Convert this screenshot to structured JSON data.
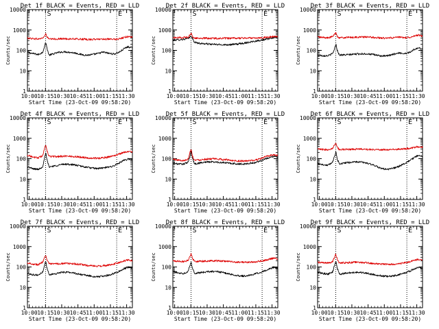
{
  "figure": {
    "xlabel": "Start Time (23-Oct-09 09:58:20)",
    "ylabel": "Counts/sec",
    "xticks": [
      "10:00",
      "10:15",
      "10:30",
      "10:45",
      "11:00",
      "11:15",
      "11:30"
    ],
    "yticks": [
      "1",
      "10",
      "100",
      "1000",
      "10000"
    ],
    "markers": [
      "S",
      "E"
    ],
    "colors": {
      "events": "#000000",
      "lld": "#dd0000",
      "vline": "#000000"
    }
  },
  "chart_data": [
    {
      "type": "line",
      "title": "Det 1f BLACK = Events, RED = LLD",
      "x_range_min": [
        0,
        97
      ],
      "ylim": [
        1,
        10000
      ],
      "yscale": "log",
      "markers_at_min": [
        16.8,
        82.5
      ],
      "x": [
        0,
        5,
        10,
        14,
        16,
        17,
        18,
        20,
        25,
        30,
        35,
        40,
        45,
        50,
        55,
        60,
        65,
        70,
        75,
        80,
        85,
        90,
        93,
        97
      ],
      "series": [
        {
          "name": "BLACK = Events",
          "values": [
            80,
            70,
            62,
            80,
            170,
            260,
            130,
            58,
            70,
            82,
            85,
            80,
            73,
            62,
            58,
            62,
            70,
            82,
            72,
            66,
            82,
            128,
            150,
            130
          ]
        },
        {
          "name": "RED = LLD",
          "values": [
            400,
            380,
            360,
            400,
            520,
            650,
            470,
            355,
            360,
            370,
            370,
            365,
            360,
            355,
            345,
            345,
            350,
            365,
            350,
            345,
            365,
            440,
            480,
            450
          ]
        }
      ]
    },
    {
      "type": "line",
      "title": "Det 2f BLACK = Events, RED = LLD",
      "x_range_min": [
        0,
        97
      ],
      "ylim": [
        1,
        10000
      ],
      "yscale": "log",
      "markers_at_min": [
        16.8,
        82.5
      ],
      "x": [
        0,
        5,
        10,
        14,
        16,
        17,
        18,
        20,
        25,
        30,
        35,
        40,
        45,
        50,
        55,
        60,
        65,
        70,
        75,
        80,
        85,
        90,
        93,
        97
      ],
      "series": [
        {
          "name": "BLACK = Events",
          "values": [
            320,
            330,
            350,
            380,
            450,
            520,
            380,
            250,
            220,
            210,
            200,
            195,
            190,
            190,
            195,
            205,
            225,
            250,
            280,
            310,
            340,
            380,
            420,
            440
          ]
        },
        {
          "name": "RED = LLD",
          "values": [
            420,
            420,
            430,
            450,
            570,
            700,
            480,
            400,
            395,
            395,
            390,
            390,
            390,
            390,
            390,
            395,
            400,
            405,
            410,
            420,
            430,
            450,
            480,
            470
          ]
        }
      ]
    },
    {
      "type": "line",
      "title": "Det 3f BLACK = Events, RED = LLD",
      "x_range_min": [
        0,
        97
      ],
      "ylim": [
        1,
        10000
      ],
      "yscale": "log",
      "markers_at_min": [
        16.8,
        82.5
      ],
      "x": [
        0,
        5,
        10,
        14,
        16,
        17,
        18,
        20,
        25,
        30,
        35,
        40,
        45,
        50,
        55,
        60,
        65,
        70,
        75,
        80,
        85,
        90,
        93,
        97
      ],
      "series": [
        {
          "name": "BLACK = Events",
          "values": [
            60,
            55,
            55,
            70,
            140,
            200,
            110,
            60,
            60,
            62,
            66,
            68,
            68,
            64,
            58,
            52,
            54,
            65,
            75,
            70,
            80,
            115,
            130,
            120
          ]
        },
        {
          "name": "RED = LLD",
          "values": [
            450,
            430,
            410,
            480,
            650,
            760,
            500,
            420,
            420,
            430,
            440,
            450,
            450,
            440,
            420,
            400,
            400,
            420,
            440,
            420,
            440,
            520,
            560,
            500
          ]
        }
      ]
    },
    {
      "type": "line",
      "title": "Det 4f BLACK = Events, RED = LLD",
      "x_range_min": [
        0,
        97
      ],
      "ylim": [
        1,
        10000
      ],
      "yscale": "log",
      "markers_at_min": [
        16.8,
        82.5
      ],
      "x": [
        0,
        5,
        10,
        14,
        16,
        17,
        18,
        20,
        25,
        30,
        35,
        40,
        45,
        50,
        55,
        60,
        65,
        70,
        75,
        80,
        85,
        90,
        93,
        97
      ],
      "series": [
        {
          "name": "BLACK = Events",
          "values": [
            40,
            32,
            30,
            40,
            120,
            190,
            90,
            40,
            44,
            50,
            54,
            52,
            48,
            42,
            38,
            34,
            33,
            35,
            38,
            45,
            62,
            85,
            95,
            90
          ]
        },
        {
          "name": "RED = LLD",
          "values": [
            150,
            120,
            110,
            140,
            330,
            480,
            240,
            130,
            125,
            130,
            135,
            130,
            125,
            120,
            110,
            105,
            105,
            110,
            120,
            140,
            170,
            210,
            230,
            210
          ]
        }
      ]
    },
    {
      "type": "line",
      "title": "Det 5f BLACK = Events, RED = LLD",
      "x_range_min": [
        0,
        97
      ],
      "ylim": [
        1,
        10000
      ],
      "yscale": "log",
      "markers_at_min": [
        16.8,
        82.5
      ],
      "x": [
        0,
        5,
        10,
        14,
        16,
        17,
        18,
        20,
        25,
        30,
        35,
        40,
        45,
        50,
        55,
        60,
        65,
        70,
        75,
        80,
        85,
        90,
        93,
        97
      ],
      "series": [
        {
          "name": "BLACK = Events",
          "values": [
            60,
            55,
            55,
            65,
            150,
            230,
            110,
            55,
            62,
            68,
            70,
            68,
            65,
            62,
            58,
            55,
            55,
            58,
            62,
            75,
            95,
            120,
            130,
            120
          ]
        },
        {
          "name": "RED = LLD",
          "values": [
            95,
            85,
            80,
            95,
            220,
            300,
            140,
            85,
            88,
            95,
            98,
            96,
            92,
            88,
            82,
            78,
            76,
            78,
            82,
            95,
            120,
            145,
            155,
            140
          ]
        }
      ]
    },
    {
      "type": "line",
      "title": "Det 6f BLACK = Events, RED = LLD",
      "x_range_min": [
        0,
        97
      ],
      "ylim": [
        1,
        10000
      ],
      "yscale": "log",
      "markers_at_min": [
        16.8,
        82.5
      ],
      "x": [
        0,
        5,
        10,
        14,
        16,
        17,
        18,
        20,
        25,
        30,
        35,
        40,
        45,
        50,
        55,
        60,
        65,
        70,
        75,
        80,
        85,
        90,
        93,
        97
      ],
      "series": [
        {
          "name": "BLACK = Events",
          "values": [
            60,
            50,
            48,
            70,
            160,
            220,
            100,
            55,
            62,
            66,
            70,
            68,
            62,
            52,
            40,
            32,
            30,
            34,
            42,
            55,
            80,
            120,
            140,
            125
          ]
        },
        {
          "name": "RED = LLD",
          "values": [
            290,
            280,
            280,
            320,
            520,
            620,
            380,
            280,
            285,
            290,
            295,
            295,
            290,
            285,
            280,
            275,
            275,
            280,
            290,
            300,
            320,
            360,
            390,
            370
          ]
        }
      ]
    },
    {
      "type": "line",
      "title": "Det 7f BLACK = Events, RED = LLD",
      "x_range_min": [
        0,
        97
      ],
      "ylim": [
        1,
        10000
      ],
      "yscale": "log",
      "markers_at_min": [
        16.8,
        82.5
      ],
      "x": [
        0,
        5,
        10,
        14,
        16,
        17,
        18,
        20,
        25,
        30,
        35,
        40,
        45,
        50,
        55,
        60,
        65,
        70,
        75,
        80,
        85,
        90,
        93,
        97
      ],
      "series": [
        {
          "name": "BLACK = Events",
          "values": [
            50,
            42,
            40,
            55,
            140,
            190,
            90,
            42,
            46,
            52,
            56,
            54,
            48,
            42,
            38,
            35,
            33,
            35,
            40,
            48,
            62,
            85,
            100,
            90
          ]
        },
        {
          "name": "RED = LLD",
          "values": [
            160,
            140,
            130,
            170,
            330,
            400,
            220,
            140,
            140,
            145,
            150,
            148,
            140,
            130,
            120,
            112,
            110,
            115,
            122,
            140,
            165,
            200,
            220,
            200
          ]
        }
      ]
    },
    {
      "type": "line",
      "title": "Det 8f BLACK = Events, RED = LLD",
      "x_range_min": [
        0,
        97
      ],
      "ylim": [
        1,
        10000
      ],
      "yscale": "log",
      "markers_at_min": [
        16.8,
        82.5
      ],
      "x": [
        0,
        5,
        10,
        14,
        16,
        17,
        18,
        20,
        25,
        30,
        35,
        40,
        45,
        50,
        55,
        60,
        65,
        70,
        75,
        80,
        85,
        90,
        93,
        97
      ],
      "series": [
        {
          "name": "BLACK = Events",
          "values": [
            60,
            52,
            48,
            62,
            130,
            180,
            90,
            50,
            52,
            56,
            60,
            60,
            55,
            48,
            42,
            38,
            36,
            38,
            44,
            52,
            65,
            85,
            95,
            90
          ]
        },
        {
          "name": "RED = LLD",
          "values": [
            200,
            190,
            185,
            210,
            360,
            440,
            270,
            190,
            190,
            195,
            200,
            200,
            195,
            190,
            180,
            170,
            168,
            172,
            180,
            190,
            210,
            250,
            270,
            250
          ]
        }
      ]
    },
    {
      "type": "line",
      "title": "Det 9f BLACK = Events, RED = LLD",
      "x_range_min": [
        0,
        97
      ],
      "ylim": [
        1,
        10000
      ],
      "yscale": "log",
      "markers_at_min": [
        16.8,
        82.5
      ],
      "x": [
        0,
        5,
        10,
        14,
        16,
        17,
        18,
        20,
        25,
        30,
        35,
        40,
        45,
        50,
        55,
        60,
        65,
        70,
        75,
        80,
        85,
        90,
        93,
        97
      ],
      "series": [
        {
          "name": "BLACK = Events",
          "values": [
            55,
            48,
            45,
            58,
            140,
            200,
            95,
            45,
            48,
            52,
            55,
            54,
            50,
            44,
            40,
            36,
            34,
            36,
            42,
            50,
            62,
            82,
            95,
            88
          ]
        },
        {
          "name": "RED = LLD",
          "values": [
            170,
            160,
            155,
            180,
            340,
            420,
            240,
            160,
            160,
            165,
            170,
            168,
            160,
            150,
            142,
            136,
            134,
            138,
            145,
            158,
            180,
            215,
            235,
            220
          ]
        }
      ]
    }
  ]
}
